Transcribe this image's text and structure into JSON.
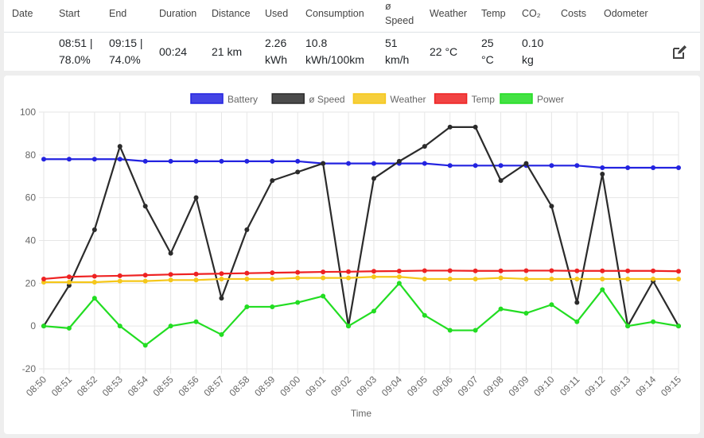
{
  "table": {
    "headers": {
      "date": "Date",
      "start": "Start",
      "end": "End",
      "duration": "Duration",
      "distance": "Distance",
      "used": "Used",
      "consumption": "Consumption",
      "speed_line1": "ø",
      "speed_line2": "Speed",
      "weather": "Weather",
      "temp": "Temp",
      "co2": "CO₂",
      "costs": "Costs",
      "odometer": "Odometer"
    },
    "row": {
      "start_line1": "08:51 |",
      "start_line2": "78.0%",
      "end_line1": "09:15 |",
      "end_line2": "74.0%",
      "duration": "00:24",
      "distance": "21 km",
      "used_line1": "2.26",
      "used_line2": "kWh",
      "consumption_line1": "10.8",
      "consumption_line2": "kWh/100km",
      "speed_line1": "51",
      "speed_line2": "km/h",
      "weather": "22 °C",
      "temp_line1": "25",
      "temp_line2": "°C",
      "co2_line1": "0.10",
      "co2_line2": "kg"
    },
    "edit_icon": "pencil-square-icon"
  },
  "chart_data": {
    "type": "line",
    "x": [
      "08:50",
      "08:51",
      "08:52",
      "08:53",
      "08:54",
      "08:55",
      "08:56",
      "08:57",
      "08:58",
      "08:59",
      "09:00",
      "09:01",
      "09:02",
      "09:03",
      "09:04",
      "09:05",
      "09:06",
      "09:07",
      "09:08",
      "09:09",
      "09:10",
      "09:11",
      "09:12",
      "09:13",
      "09:14",
      "09:15"
    ],
    "xlabel": "Time",
    "ylabel": "",
    "ylim": [
      -20,
      100
    ],
    "yticks": [
      -20,
      0,
      20,
      40,
      60,
      80,
      100
    ],
    "grid": true,
    "legend_position": "top-center",
    "series": [
      {
        "name": "Battery",
        "color": "#2323e0",
        "values": [
          78,
          78,
          78,
          78,
          77,
          77,
          77,
          77,
          77,
          77,
          77,
          76,
          76,
          76,
          76,
          76,
          75,
          75,
          75,
          75,
          75,
          75,
          74,
          74,
          74,
          74
        ]
      },
      {
        "name": "ø Speed",
        "color": "#2b2b2b",
        "values": [
          0,
          19,
          45,
          84,
          56,
          34,
          60,
          13,
          45,
          68,
          72,
          76,
          0,
          69,
          77,
          84,
          93,
          93,
          68,
          76,
          56,
          11,
          71,
          0,
          21,
          0
        ]
      },
      {
        "name": "Weather",
        "color": "#f5c71a",
        "values": [
          20.5,
          20.5,
          20.5,
          21,
          21,
          21.5,
          21.5,
          22,
          22,
          22,
          22.5,
          22.5,
          22.5,
          23,
          23,
          22,
          22,
          22,
          22.5,
          22,
          22,
          22,
          22,
          22,
          22,
          22
        ]
      },
      {
        "name": "Temp",
        "color": "#ee2222",
        "values": [
          22,
          23,
          23.3,
          23.5,
          23.8,
          24.1,
          24.3,
          24.5,
          24.7,
          24.9,
          25.1,
          25.3,
          25.4,
          25.6,
          25.7,
          25.9,
          25.9,
          25.8,
          25.8,
          25.9,
          25.9,
          25.8,
          25.8,
          25.8,
          25.8,
          25.6
        ]
      },
      {
        "name": "Power",
        "color": "#22dd22",
        "values": [
          0,
          -1,
          13,
          0,
          -9,
          0,
          2,
          -4,
          9,
          9,
          11,
          14,
          0,
          7,
          20,
          5,
          -2,
          -2,
          8,
          6,
          10,
          2,
          17,
          0,
          2,
          0
        ]
      }
    ]
  }
}
